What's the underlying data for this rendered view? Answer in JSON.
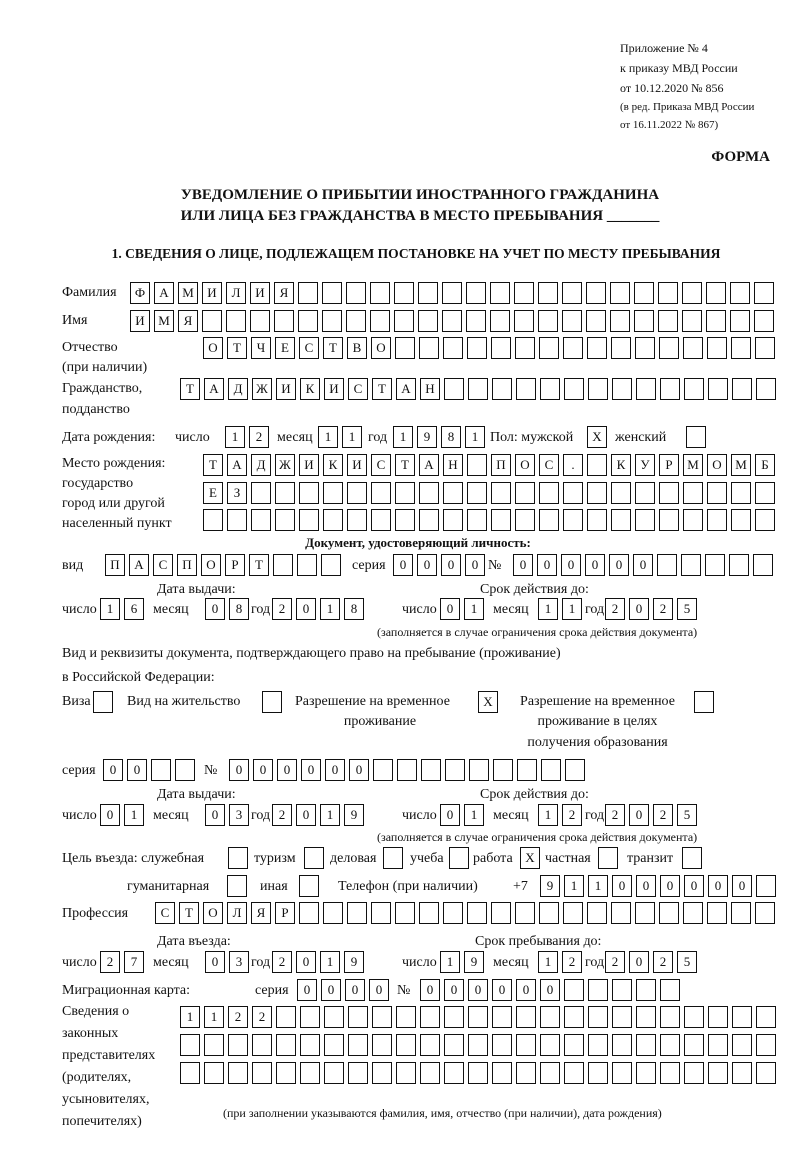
{
  "header": {
    "appendix": "Приложение № 4",
    "order": "к приказу МВД России",
    "order_date": "от 10.12.2020 № 856",
    "edit1": "(в ред. Приказа МВД России",
    "edit2": "от 16.11.2022 № 867)",
    "form": "ФОРМА",
    "title1": "УВЕДОМЛЕНИЕ О ПРИБЫТИИ ИНОСТРАННОГО ГРАЖДАНИНА",
    "title2": "ИЛИ ЛИЦА БЕЗ ГРАЖДАНСТВА В МЕСТО ПРЕБЫВАНИЯ",
    "title_blank": "_______"
  },
  "section1": "1. СВЕДЕНИЯ О ЛИЦЕ, ПОДЛЕЖАЩЕМ ПОСТАНОВКЕ НА УЧЕТ ПО МЕСТУ ПРЕБЫВАНИЯ",
  "labels": {
    "surname": "Фамилия",
    "name": "Имя",
    "patronymic1": "Отчество",
    "patronymic2": "(при наличии)",
    "citizenship1": "Гражданство,",
    "citizenship2": "подданство",
    "birth_date": "Дата рождения:",
    "day": "число",
    "month": "месяц",
    "year": "год",
    "sex": "Пол: мужской",
    "female": "женский",
    "birth_place1": "Место рождения:",
    "birth_place2": "государство",
    "birth_place3": "город или другой",
    "birth_place4": "населенный пункт",
    "id_doc": "Документ, удостоверяющий личность:",
    "kind": "вид",
    "series": "серия",
    "number": "№",
    "issue_date": "Дата выдачи:",
    "valid_until": "Срок действия до:",
    "validity_note": "(заполняется в случае ограничения срока действия документа)",
    "stay_doc1": "Вид и реквизиты документа, подтверждающего право на пребывание (проживание)",
    "stay_doc2": "в Российской Федерации:",
    "visa": "Виза",
    "residence": "Вид на жительство",
    "temp_permit1": "Разрешение на временное",
    "temp_permit2": "проживание",
    "edu_permit1": "Разрешение на временное",
    "edu_permit2": "проживание в целях",
    "edu_permit3": "получения образования",
    "purpose": "Цель въезда: служебная",
    "tourism": "туризм",
    "business": "деловая",
    "study": "учеба",
    "work": "работа",
    "private": "частная",
    "transit": "транзит",
    "humanitarian": "гуманитарная",
    "other": "иная",
    "phone": "Телефон (при наличии)",
    "phone_prefix": "+7",
    "profession": "Профессия",
    "entry_date": "Дата въезда:",
    "stay_until": "Срок пребывания до:",
    "migration_card": "Миграционная карта:",
    "reps1": "Сведения о",
    "reps2": "законных",
    "reps3": "представителях",
    "reps4": "(родителях,",
    "reps5": "усыновителях,",
    "reps6": "попечителях)",
    "reps_note": "(при заполнении указываются фамилия, имя, отчество (при наличии), дата рождения)"
  },
  "fields": {
    "surname": "ФАМИЛИЯ",
    "name": "ИМЯ",
    "patronymic": "ОТЧЕСТВО",
    "citizenship": "ТАДЖИКИСТАН",
    "birth_day": "12",
    "birth_month": "11",
    "birth_year": "1981",
    "sex_male": "X",
    "sex_female": "",
    "birth_place1": "ТАДЖИКИСТАН ПОС. КУРМОМБ",
    "birth_place2": "ЕЗ",
    "birth_place3": "",
    "id_kind": "ПАСПОРТ",
    "id_series": "0000",
    "id_number": "000000",
    "id_issue_day": "16",
    "id_issue_month": "08",
    "id_issue_year": "2018",
    "id_valid_day": "01",
    "id_valid_month": "11",
    "id_valid_year": "2025",
    "visa": "",
    "residence": "",
    "temp_permit": "X",
    "edu_permit": "",
    "stay_series": "00",
    "stay_number": "000000",
    "stay_issue_day": "01",
    "stay_issue_month": "03",
    "stay_issue_year": "2019",
    "stay_valid_day": "01",
    "stay_valid_month": "12",
    "stay_valid_year": "2025",
    "p_service": "",
    "p_tourism": "",
    "p_business": "",
    "p_study": "",
    "p_work": "X",
    "p_private": "",
    "p_transit": "",
    "p_humanitarian": "",
    "p_other": "",
    "phone": "911000000",
    "profession": "СТОЛЯР",
    "entry_day": "27",
    "entry_month": "03",
    "entry_year": "2019",
    "until_day": "19",
    "until_month": "12",
    "until_year": "2025",
    "mig_series": "0000",
    "mig_number": "000000",
    "reps1": "1122",
    "reps2": "",
    "reps3": ""
  }
}
